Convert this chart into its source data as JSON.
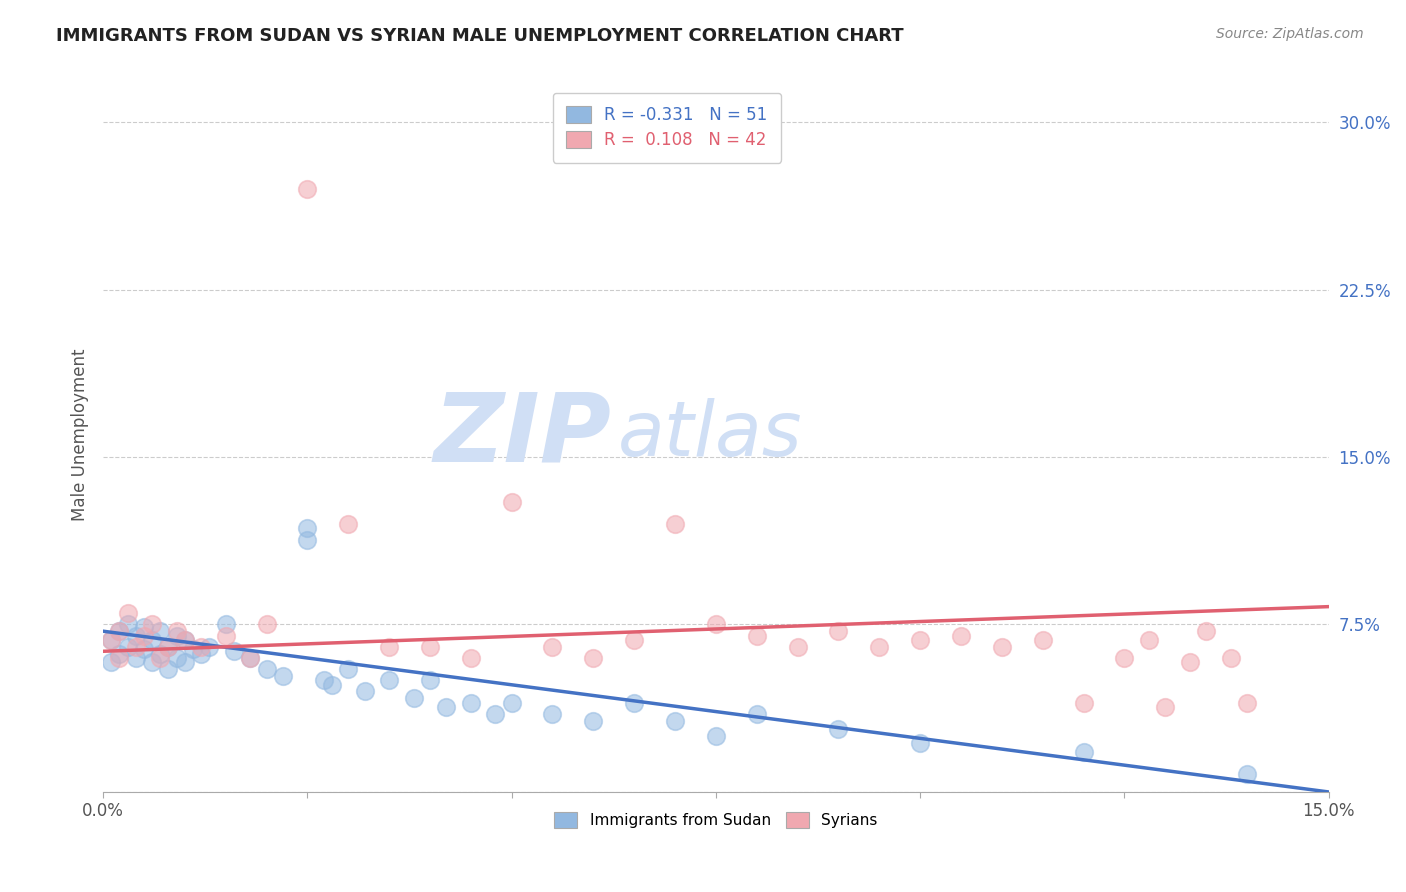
{
  "title": "IMMIGRANTS FROM SUDAN VS SYRIAN MALE UNEMPLOYMENT CORRELATION CHART",
  "source": "Source: ZipAtlas.com",
  "ylabel": "Male Unemployment",
  "xlim": [
    0.0,
    0.15
  ],
  "ylim": [
    0.0,
    0.32
  ],
  "xticks": [
    0.0,
    0.025,
    0.05,
    0.075,
    0.1,
    0.125,
    0.15
  ],
  "xticklabels": [
    "0.0%",
    "",
    "",
    "",
    "",
    "",
    "15.0%"
  ],
  "yticks": [
    0.0,
    0.075,
    0.15,
    0.225,
    0.3
  ],
  "yticklabels": [
    "",
    "7.5%",
    "15.0%",
    "22.5%",
    "30.0%"
  ],
  "blue_R": -0.331,
  "blue_N": 51,
  "pink_R": 0.108,
  "pink_N": 42,
  "blue_color": "#92b8e0",
  "pink_color": "#f0a8b0",
  "blue_line_color": "#4472c4",
  "pink_line_color": "#e06070",
  "watermark_zip": "ZIP",
  "watermark_atlas": "atlas",
  "watermark_color": "#d0dff5",
  "grid_color": "#cccccc",
  "blue_scatter_x": [
    0.001,
    0.001,
    0.002,
    0.002,
    0.003,
    0.003,
    0.004,
    0.004,
    0.005,
    0.005,
    0.006,
    0.006,
    0.007,
    0.007,
    0.008,
    0.008,
    0.009,
    0.009,
    0.01,
    0.01,
    0.011,
    0.012,
    0.013,
    0.015,
    0.016,
    0.018,
    0.02,
    0.022,
    0.025,
    0.025,
    0.027,
    0.028,
    0.03,
    0.032,
    0.035,
    0.038,
    0.04,
    0.042,
    0.045,
    0.048,
    0.05,
    0.055,
    0.06,
    0.065,
    0.07,
    0.075,
    0.08,
    0.09,
    0.1,
    0.12,
    0.14
  ],
  "blue_scatter_y": [
    0.068,
    0.058,
    0.072,
    0.062,
    0.075,
    0.065,
    0.07,
    0.06,
    0.074,
    0.064,
    0.068,
    0.058,
    0.072,
    0.062,
    0.065,
    0.055,
    0.07,
    0.06,
    0.068,
    0.058,
    0.064,
    0.062,
    0.065,
    0.075,
    0.063,
    0.06,
    0.055,
    0.052,
    0.118,
    0.113,
    0.05,
    0.048,
    0.055,
    0.045,
    0.05,
    0.042,
    0.05,
    0.038,
    0.04,
    0.035,
    0.04,
    0.035,
    0.032,
    0.04,
    0.032,
    0.025,
    0.035,
    0.028,
    0.022,
    0.018,
    0.008
  ],
  "pink_scatter_x": [
    0.001,
    0.002,
    0.002,
    0.003,
    0.004,
    0.005,
    0.006,
    0.007,
    0.008,
    0.009,
    0.01,
    0.012,
    0.015,
    0.018,
    0.02,
    0.025,
    0.03,
    0.035,
    0.04,
    0.045,
    0.05,
    0.055,
    0.06,
    0.065,
    0.07,
    0.075,
    0.08,
    0.085,
    0.09,
    0.095,
    0.1,
    0.105,
    0.11,
    0.115,
    0.12,
    0.125,
    0.128,
    0.13,
    0.133,
    0.135,
    0.138,
    0.14
  ],
  "pink_scatter_y": [
    0.068,
    0.072,
    0.06,
    0.08,
    0.065,
    0.07,
    0.075,
    0.06,
    0.065,
    0.072,
    0.068,
    0.065,
    0.07,
    0.06,
    0.075,
    0.27,
    0.12,
    0.065,
    0.065,
    0.06,
    0.13,
    0.065,
    0.06,
    0.068,
    0.12,
    0.075,
    0.07,
    0.065,
    0.072,
    0.065,
    0.068,
    0.07,
    0.065,
    0.068,
    0.04,
    0.06,
    0.068,
    0.038,
    0.058,
    0.072,
    0.06,
    0.04
  ],
  "blue_line_x0": 0.0,
  "blue_line_y0": 0.072,
  "blue_line_x1": 0.15,
  "blue_line_y1": 0.0,
  "pink_line_x0": 0.0,
  "pink_line_y0": 0.063,
  "pink_line_x1": 0.15,
  "pink_line_y1": 0.083
}
